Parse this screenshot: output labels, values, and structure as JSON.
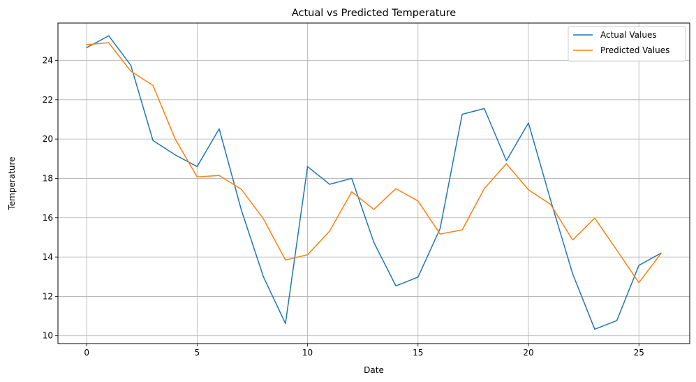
{
  "chart_data": {
    "type": "line",
    "title": "Actual vs Predicted Temperature",
    "xlabel": "Date",
    "ylabel": "Temperature",
    "xlim": [
      -1.3,
      27.3
    ],
    "ylim": [
      9.6,
      25.9
    ],
    "xticks": [
      0,
      5,
      10,
      15,
      20,
      25
    ],
    "yticks": [
      10,
      12,
      14,
      16,
      18,
      20,
      22,
      24
    ],
    "grid": true,
    "legend_position": "top-right",
    "x": [
      0,
      1,
      2,
      3,
      4,
      5,
      6,
      7,
      8,
      9,
      10,
      11,
      12,
      13,
      14,
      15,
      16,
      17,
      18,
      19,
      20,
      21,
      22,
      23,
      24,
      25,
      26
    ],
    "series": [
      {
        "name": "Actual Values",
        "color": "#1f77b4",
        "values": [
          24.65,
          25.25,
          23.75,
          19.93,
          19.2,
          18.6,
          20.52,
          16.4,
          13.0,
          10.62,
          18.6,
          17.7,
          18.0,
          14.75,
          12.53,
          12.98,
          15.45,
          21.26,
          21.55,
          18.9,
          20.82,
          16.9,
          13.15,
          10.33,
          10.77,
          13.58,
          14.2
        ]
      },
      {
        "name": "Predicted Values",
        "color": "#ff7f0e",
        "values": [
          24.8,
          24.9,
          23.45,
          22.73,
          20.02,
          18.08,
          18.15,
          17.45,
          15.95,
          13.85,
          14.12,
          15.32,
          17.32,
          16.42,
          17.48,
          16.85,
          15.17,
          15.38,
          17.48,
          18.75,
          17.42,
          16.68,
          14.87,
          15.98,
          14.35,
          12.7,
          14.18
        ]
      }
    ]
  }
}
